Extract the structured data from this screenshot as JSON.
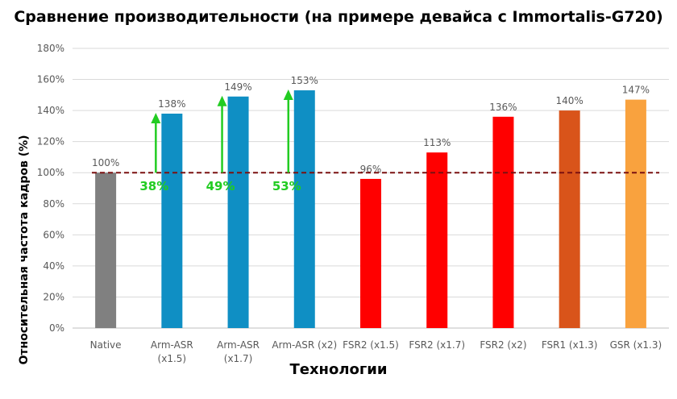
{
  "chart_data": {
    "type": "bar",
    "title": "Сравнение производительности (на примере девайса с Immortalis-G720)",
    "xlabel": "Технологии",
    "ylabel": "Относительная частота кадров (%)",
    "ylim": [
      0,
      180
    ],
    "yticks": [
      "0%",
      "20%",
      "40%",
      "60%",
      "80%",
      "100%",
      "120%",
      "140%",
      "160%",
      "180%"
    ],
    "grid": true,
    "legend": "none",
    "categories": [
      "Native",
      "Arm-ASR (x1.5)",
      "Arm-ASR (x1.7)",
      "Arm-ASR (x2)",
      "FSR2 (x1.5)",
      "FSR2 (x1.7)",
      "FSR2 (x2)",
      "FSR1 (x1.3)",
      "GSR (x1.3)"
    ],
    "category_lines": [
      [
        "Native"
      ],
      [
        "Arm-ASR",
        "(x1.5)"
      ],
      [
        "Arm-ASR",
        "(x1.7)"
      ],
      [
        "Arm-ASR (x2)"
      ],
      [
        "FSR2 (x1.5)"
      ],
      [
        "FSR2 (x1.7)"
      ],
      [
        "FSR2 (x2)"
      ],
      [
        "FSR1 (x1.3)"
      ],
      [
        "GSR (x1.3)"
      ]
    ],
    "values": [
      100,
      138,
      149,
      153,
      96,
      113,
      136,
      140,
      147
    ],
    "value_labels": [
      "100%",
      "138%",
      "149%",
      "153%",
      "96%",
      "113%",
      "136%",
      "140%",
      "147%"
    ],
    "colors": [
      "#808080",
      "#0f8fc4",
      "#0f8fc4",
      "#0f8fc4",
      "#ff0000",
      "#ff0000",
      "#ff0000",
      "#d9541a",
      "#f9a23e"
    ],
    "reference_line": {
      "value": 100,
      "color": "#7b1111",
      "style": "dashed"
    },
    "annotations": [
      {
        "category_index": 1,
        "label": "38%",
        "from": 100,
        "to": 138,
        "color": "#22cc22"
      },
      {
        "category_index": 2,
        "label": "49%",
        "from": 100,
        "to": 149,
        "color": "#22cc22"
      },
      {
        "category_index": 3,
        "label": "53%",
        "from": 100,
        "to": 153,
        "color": "#22cc22"
      }
    ]
  }
}
